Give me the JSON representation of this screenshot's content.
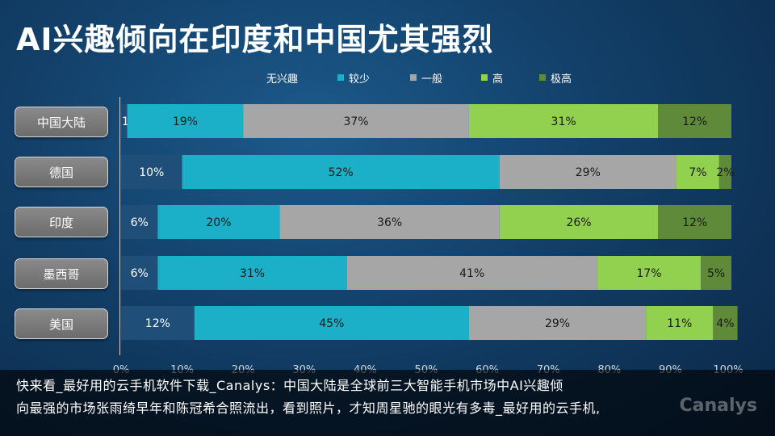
{
  "title": "AI兴趣倾向在印度和中国尤其强烈",
  "chart_data": {
    "type": "bar",
    "orientation": "horizontal",
    "stacked": true,
    "categories": [
      "中国大陆",
      "德国",
      "印度",
      "墨西哥",
      "美国"
    ],
    "series": [
      {
        "name": "无兴趣",
        "color": "#1f4e79",
        "values": [
          1,
          10,
          6,
          6,
          12
        ]
      },
      {
        "name": "较少",
        "color": "#1bb0c8",
        "values": [
          19,
          52,
          20,
          31,
          45
        ]
      },
      {
        "name": "一般",
        "color": "#a6a6a6",
        "values": [
          37,
          29,
          36,
          41,
          29
        ]
      },
      {
        "name": "高",
        "color": "#92d050",
        "values": [
          31,
          7,
          26,
          17,
          11
        ]
      },
      {
        "name": "极高",
        "color": "#5f8a3a",
        "values": [
          12,
          2,
          12,
          5,
          4
        ]
      }
    ],
    "x_ticks": [
      "0%",
      "10%",
      "20%",
      "30%",
      "40%",
      "50%",
      "60%",
      "70%",
      "80%",
      "90%",
      "100%"
    ],
    "xlim": [
      0,
      100
    ],
    "legend_position": "top"
  },
  "caption": {
    "line1": "快来看_最好用的云手机软件下载_Canalys：中国大陆是全球前三大智能手机市场中AI兴趣倾",
    "line2": "向最强的市场张雨绮早年和陈冠希合照流出，看到照片，才知周星驰的眼光有多毒_最好用的云手机,"
  },
  "watermark": "Canalys"
}
